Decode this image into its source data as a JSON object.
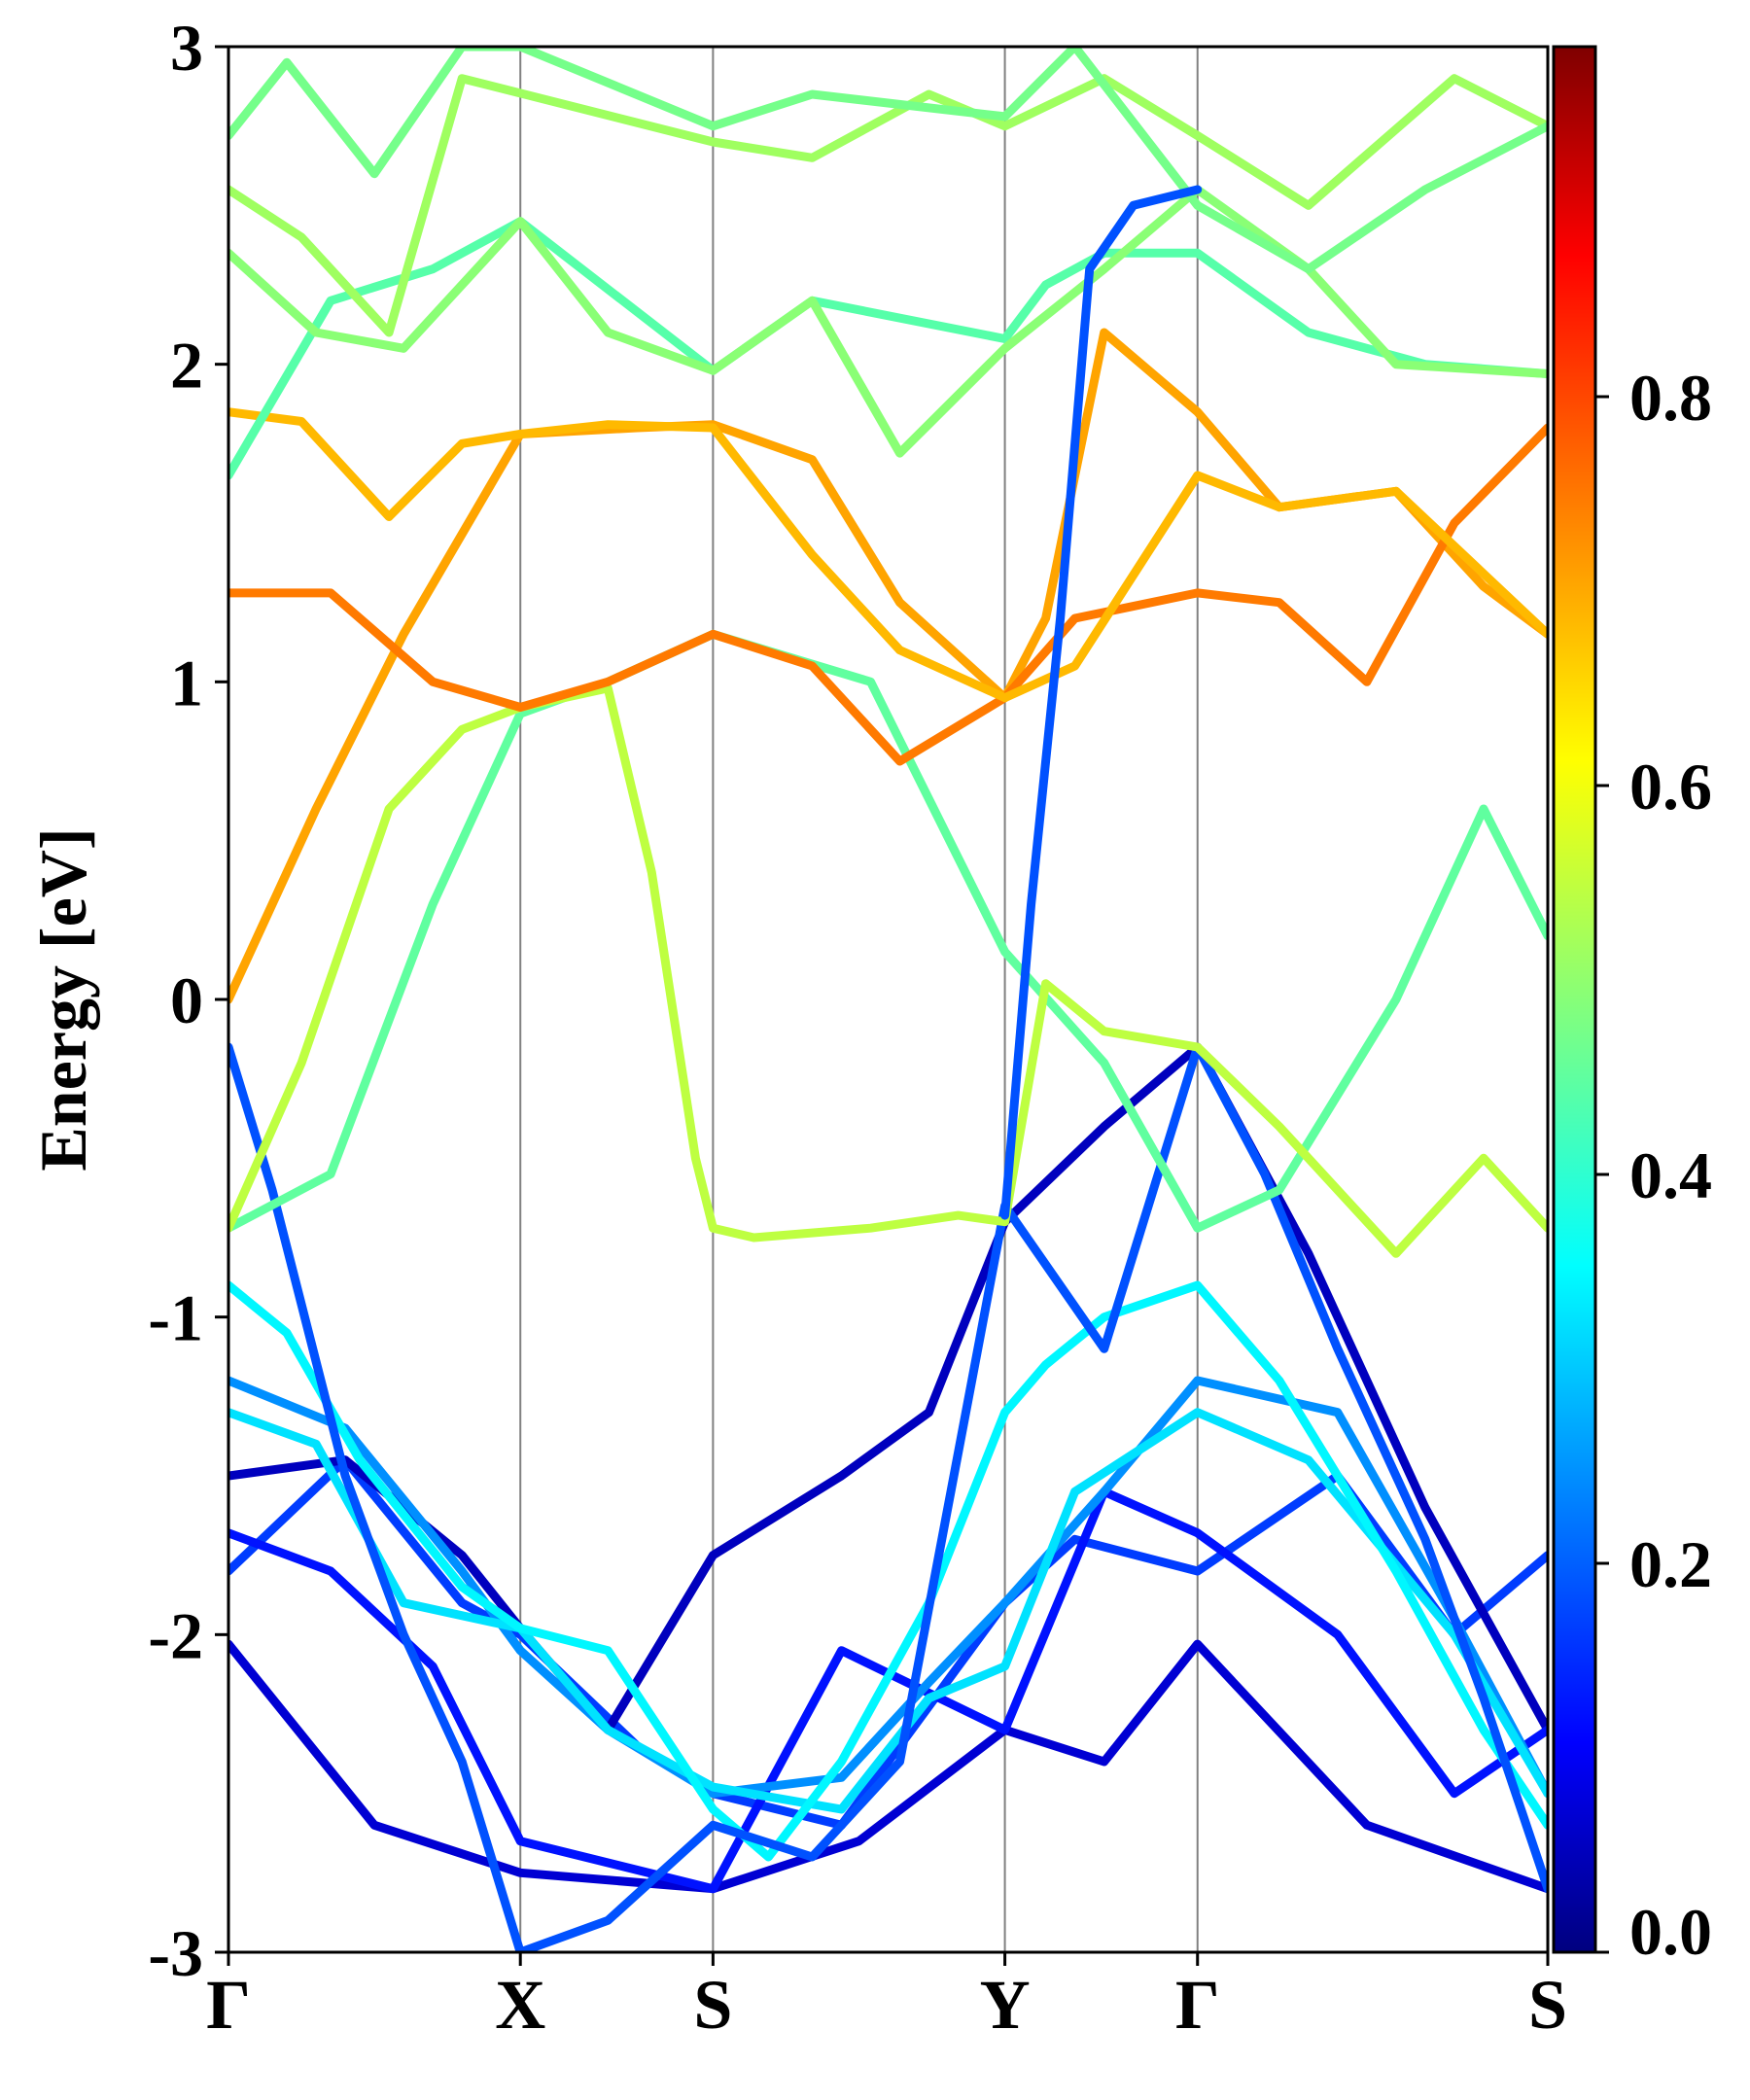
{
  "chart_data": {
    "type": "line",
    "title": "",
    "xlabel": "",
    "ylabel": "Energy [eV]",
    "ylim": [
      -3,
      3
    ],
    "yticks": [
      3,
      2,
      1,
      0,
      -1,
      -2,
      -3
    ],
    "ytick_labels": [
      "3",
      "2",
      "1",
      "0",
      "-1",
      "-2",
      "-3"
    ],
    "xlim": [
      0,
      4.52
    ],
    "kpath": [
      {
        "label": "Γ",
        "x": 0
      },
      {
        "label": "X",
        "x": 1
      },
      {
        "label": "S",
        "x": 1.66
      },
      {
        "label": "Y",
        "x": 2.66
      },
      {
        "label": "Γ",
        "x": 3.32
      },
      {
        "label": "S",
        "x": 4.52
      }
    ],
    "colorbar": {
      "range": [
        0,
        0.98
      ],
      "ticks": [
        0.0,
        0.2,
        0.4,
        0.6,
        0.8
      ],
      "tick_labels": [
        "0.0",
        "0.2",
        "0.4",
        "0.6",
        "0.8"
      ],
      "colormap": "jet"
    },
    "series": [
      {
        "x": [
          0,
          0.5,
          1,
          1.66,
          2.16,
          2.66,
          3.0,
          3.32,
          3.9,
          4.52
        ],
        "y": [
          -2.03,
          -2.6,
          -2.75,
          -2.8,
          -2.65,
          -2.3,
          -2.4,
          -2.03,
          -2.6,
          -2.8
        ],
        "weight": 0.08
      },
      {
        "x": [
          0,
          0.4,
          0.8,
          1,
          1.4,
          1.66,
          2.1,
          2.66,
          2.9,
          3.32,
          3.8,
          4.2,
          4.52
        ],
        "y": [
          -1.8,
          -1.45,
          -1.9,
          -2.0,
          -2.35,
          -2.5,
          -2.6,
          -1.9,
          -1.7,
          -1.8,
          -1.5,
          -2.0,
          -1.75
        ],
        "weight": 0.18
      },
      {
        "x": [
          0,
          0.4,
          0.8,
          1,
          1.3,
          1.66,
          2.1,
          2.4,
          2.66,
          3.0,
          3.32,
          3.7,
          4.1,
          4.52
        ],
        "y": [
          -1.5,
          -1.45,
          -1.75,
          -1.98,
          -2.3,
          -1.75,
          -1.5,
          -1.3,
          -0.7,
          -0.4,
          -0.15,
          -0.8,
          -1.6,
          -2.3
        ],
        "weight": 0.06
      },
      {
        "x": [
          0,
          0.35,
          0.7,
          1,
          1.66,
          2.1,
          2.66,
          3.0,
          3.32,
          3.8,
          4.2,
          4.52
        ],
        "y": [
          -1.68,
          -1.8,
          -2.1,
          -2.65,
          -2.8,
          -2.05,
          -2.3,
          -1.55,
          -1.68,
          -2.0,
          -2.5,
          -2.3
        ],
        "weight": 0.14
      },
      {
        "x": [
          0,
          0.4,
          0.8,
          1,
          1.3,
          1.66,
          2.1,
          2.4,
          2.66,
          3.0,
          3.32,
          3.8,
          4.2,
          4.52
        ],
        "y": [
          -1.2,
          -1.35,
          -1.8,
          -2.05,
          -2.3,
          -2.5,
          -2.45,
          -2.15,
          -1.9,
          -1.55,
          -1.2,
          -1.3,
          -1.95,
          -2.5
        ],
        "weight": 0.26
      },
      {
        "x": [
          0,
          0.3,
          0.6,
          1,
          1.3,
          1.66,
          2.1,
          2.4,
          2.66,
          2.9,
          3.32,
          3.7,
          4.2,
          4.52
        ],
        "y": [
          -1.3,
          -1.4,
          -1.9,
          -1.98,
          -2.3,
          -2.48,
          -2.55,
          -2.2,
          -2.1,
          -1.55,
          -1.3,
          -1.45,
          -2.0,
          -2.5
        ],
        "weight": 0.34
      },
      {
        "x": [
          0,
          0.2,
          0.45,
          0.8,
          1,
          1.3,
          1.66,
          1.85,
          2.1,
          2.4,
          2.66,
          2.8,
          3.0,
          3.32,
          3.6,
          4.0,
          4.3,
          4.52
        ],
        "y": [
          -0.9,
          -1.05,
          -1.45,
          -1.85,
          -1.98,
          -2.05,
          -2.55,
          -2.7,
          -2.4,
          -1.9,
          -1.3,
          -1.15,
          -1.0,
          -0.9,
          -1.2,
          -1.8,
          -2.3,
          -2.6
        ],
        "weight": 0.36
      },
      {
        "x": [
          0,
          0.15,
          0.4,
          0.6,
          0.8,
          1,
          1.3,
          1.66,
          2.0,
          2.3,
          2.66,
          3.0,
          3.32,
          3.55,
          3.8,
          4.1,
          4.3,
          4.52
        ],
        "y": [
          -0.15,
          -0.6,
          -1.5,
          -2.0,
          -2.4,
          -3.0,
          -2.9,
          -2.6,
          -2.7,
          -2.4,
          -0.65,
          -1.1,
          -0.15,
          -0.55,
          -1.1,
          -1.7,
          -2.2,
          -2.8
        ],
        "weight": 0.2
      },
      {
        "x": [
          0,
          0.35,
          0.7,
          1,
          1.3,
          1.66,
          2.2,
          2.66,
          3.0,
          3.32,
          3.6,
          4.0,
          4.3,
          4.52
        ],
        "y": [
          -0.72,
          -0.55,
          0.3,
          0.9,
          1.0,
          1.15,
          1.0,
          0.15,
          -0.2,
          -0.72,
          -0.6,
          0.0,
          0.6,
          0.2
        ],
        "weight": 0.46
      },
      {
        "x": [
          0,
          0.25,
          0.55,
          0.8,
          1,
          1.3,
          1.45,
          1.6,
          1.66,
          1.8,
          2.2,
          2.5,
          2.66,
          2.8,
          3.0,
          3.32,
          3.6,
          4.0,
          4.3,
          4.52
        ],
        "y": [
          -0.72,
          -0.2,
          0.6,
          0.85,
          0.92,
          0.98,
          0.4,
          -0.5,
          -0.72,
          -0.75,
          -0.72,
          -0.68,
          -0.7,
          0.05,
          -0.1,
          -0.15,
          -0.4,
          -0.8,
          -0.5,
          -0.72
        ],
        "weight": 0.55
      },
      {
        "x": [
          0,
          0.3,
          0.6,
          1,
          1.4,
          1.66,
          2.0,
          2.3,
          2.66,
          2.8,
          3.0,
          3.32,
          3.6,
          4.0,
          4.3,
          4.52
        ],
        "y": [
          0.0,
          0.6,
          1.15,
          1.78,
          1.8,
          1.81,
          1.7,
          1.25,
          0.95,
          1.2,
          2.1,
          1.85,
          1.55,
          1.6,
          1.3,
          1.15
        ],
        "weight": 0.7
      },
      {
        "x": [
          0,
          0.35,
          0.7,
          1,
          1.3,
          1.66,
          2.0,
          2.3,
          2.66,
          2.9,
          3.32,
          3.6,
          3.9,
          4.2,
          4.52
        ],
        "y": [
          1.28,
          1.28,
          1.0,
          0.92,
          1.0,
          1.15,
          1.05,
          0.75,
          0.95,
          1.2,
          1.28,
          1.25,
          1.0,
          1.5,
          1.8
        ],
        "weight": 0.74
      },
      {
        "x": [
          0,
          0.25,
          0.55,
          0.8,
          1,
          1.3,
          1.66,
          2.0,
          2.3,
          2.66,
          2.9,
          3.32,
          3.6,
          4.0,
          4.52
        ],
        "y": [
          1.85,
          1.82,
          1.52,
          1.75,
          1.78,
          1.81,
          1.8,
          1.4,
          1.1,
          0.95,
          1.05,
          1.65,
          1.55,
          1.6,
          1.15
        ],
        "weight": 0.68
      },
      {
        "x": [
          0,
          0.35,
          0.7,
          1,
          1.66,
          2.0,
          2.66,
          2.8,
          3.0,
          3.32,
          3.7,
          4.1,
          4.52
        ],
        "y": [
          1.65,
          2.2,
          2.3,
          2.45,
          1.98,
          2.2,
          2.08,
          2.25,
          2.35,
          2.35,
          2.1,
          2.0,
          1.97
        ],
        "weight": 0.45
      },
      {
        "x": [
          0,
          0.3,
          0.6,
          1,
          1.3,
          1.66,
          2.0,
          2.3,
          2.66,
          3.0,
          3.32,
          3.7,
          4.0,
          4.52
        ],
        "y": [
          2.35,
          2.1,
          2.05,
          2.45,
          2.1,
          1.98,
          2.2,
          1.72,
          2.05,
          2.3,
          2.55,
          2.3,
          2.0,
          1.97
        ],
        "weight": 0.5
      },
      {
        "x": [
          0,
          0.25,
          0.55,
          0.8,
          1.66,
          2.0,
          2.4,
          2.66,
          3.0,
          3.32,
          3.7,
          4.2,
          4.52
        ],
        "y": [
          2.55,
          2.4,
          2.1,
          2.9,
          2.7,
          2.65,
          2.85,
          2.75,
          2.9,
          2.72,
          2.5,
          2.9,
          2.75
        ],
        "weight": 0.52
      },
      {
        "x": [
          0,
          0.2,
          0.5,
          0.8,
          1.0,
          1.66,
          2.0,
          2.66,
          2.9,
          3.32,
          3.7,
          4.1,
          4.52
        ],
        "y": [
          2.72,
          2.95,
          2.6,
          3.0,
          3.0,
          2.75,
          2.85,
          2.78,
          3.0,
          2.5,
          2.3,
          2.55,
          2.75
        ],
        "weight": 0.48
      },
      {
        "x": [
          2.66,
          2.75,
          2.85,
          2.95,
          3.1,
          3.32
        ],
        "y": [
          -0.68,
          0.3,
          1.2,
          2.3,
          2.5,
          2.55
        ],
        "weight": 0.2
      }
    ]
  }
}
